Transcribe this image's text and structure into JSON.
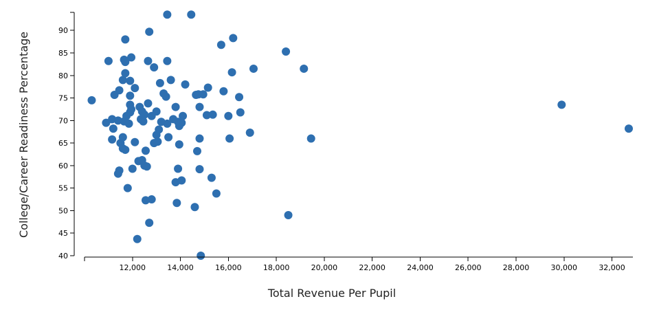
{
  "chart_data": {
    "type": "scatter",
    "xlabel": "Total Revenue Per Pupil",
    "ylabel": "College/Career Readiness Percentage",
    "xlim": [
      10000,
      32700
    ],
    "ylim": [
      40,
      94
    ],
    "x_ticks": [
      12000,
      14000,
      16000,
      18000,
      20000,
      22000,
      24000,
      26000,
      28000,
      30000,
      32000
    ],
    "x_tick_labels": [
      "12,000",
      "14,000",
      "16,000",
      "18,000",
      "20,000",
      "22,000",
      "24,000",
      "26,000",
      "28,000",
      "30,000",
      "32,000"
    ],
    "y_ticks": [
      40,
      45,
      50,
      55,
      60,
      65,
      70,
      75,
      80,
      85,
      90
    ],
    "y_tick_labels": [
      "40",
      "45",
      "50",
      "55",
      "60",
      "65",
      "70",
      "75",
      "80",
      "85",
      "90"
    ],
    "grid": false,
    "legend": "none",
    "marker_color": "#2e6fb0",
    "points": [
      [
        10300,
        74.5
      ],
      [
        10900,
        69.5
      ],
      [
        11000,
        83.2
      ],
      [
        11150,
        65.8
      ],
      [
        11150,
        70.3
      ],
      [
        11200,
        68.2
      ],
      [
        11250,
        75.7
      ],
      [
        11400,
        70.0
      ],
      [
        11450,
        76.7
      ],
      [
        11400,
        58.2
      ],
      [
        11450,
        58.9
      ],
      [
        11500,
        65.0
      ],
      [
        11600,
        63.8
      ],
      [
        11600,
        66.3
      ],
      [
        11600,
        79.0
      ],
      [
        11650,
        83.5
      ],
      [
        11650,
        69.8
      ],
      [
        11700,
        80.5
      ],
      [
        11700,
        83.0
      ],
      [
        11700,
        63.5
      ],
      [
        11700,
        88.0
      ],
      [
        11750,
        71.0
      ],
      [
        11800,
        55.0
      ],
      [
        11850,
        69.3
      ],
      [
        11900,
        78.8
      ],
      [
        11900,
        75.5
      ],
      [
        11900,
        73.5
      ],
      [
        11900,
        71.8
      ],
      [
        11950,
        84.0
      ],
      [
        11950,
        72.5
      ],
      [
        12000,
        59.3
      ],
      [
        12100,
        77.2
      ],
      [
        12100,
        65.2
      ],
      [
        12200,
        43.7
      ],
      [
        12250,
        61.0
      ],
      [
        12300,
        73.0
      ],
      [
        12350,
        70.3
      ],
      [
        12400,
        72.0
      ],
      [
        12400,
        61.2
      ],
      [
        12450,
        69.8
      ],
      [
        12500,
        71.3
      ],
      [
        12500,
        60.0
      ],
      [
        12550,
        63.3
      ],
      [
        12550,
        52.3
      ],
      [
        12600,
        59.8
      ],
      [
        12650,
        73.8
      ],
      [
        12650,
        83.2
      ],
      [
        12700,
        89.7
      ],
      [
        12700,
        47.3
      ],
      [
        12800,
        52.5
      ],
      [
        12800,
        71.0
      ],
      [
        12900,
        81.8
      ],
      [
        12900,
        65.0
      ],
      [
        13000,
        72.0
      ],
      [
        13000,
        66.8
      ],
      [
        13050,
        65.3
      ],
      [
        13100,
        68.0
      ],
      [
        13150,
        78.3
      ],
      [
        13200,
        69.7
      ],
      [
        13300,
        76.0
      ],
      [
        13400,
        75.3
      ],
      [
        13450,
        69.3
      ],
      [
        13450,
        83.2
      ],
      [
        13450,
        93.5
      ],
      [
        13500,
        66.3
      ],
      [
        13600,
        79.0
      ],
      [
        13700,
        70.3
      ],
      [
        13800,
        56.3
      ],
      [
        13800,
        73.0
      ],
      [
        13850,
        51.7
      ],
      [
        13900,
        59.3
      ],
      [
        13900,
        69.7
      ],
      [
        13950,
        64.7
      ],
      [
        13950,
        68.8
      ],
      [
        14050,
        56.7
      ],
      [
        14050,
        69.5
      ],
      [
        14100,
        71.0
      ],
      [
        14200,
        78.0
      ],
      [
        14450,
        93.5
      ],
      [
        14600,
        50.8
      ],
      [
        14650,
        75.7
      ],
      [
        14700,
        63.2
      ],
      [
        14750,
        75.8
      ],
      [
        14800,
        73.0
      ],
      [
        14800,
        66.0
      ],
      [
        14800,
        59.2
      ],
      [
        14850,
        40.0
      ],
      [
        14950,
        75.8
      ],
      [
        15100,
        71.2
      ],
      [
        15150,
        77.3
      ],
      [
        15300,
        57.3
      ],
      [
        15350,
        71.3
      ],
      [
        15500,
        53.8
      ],
      [
        15700,
        86.8
      ],
      [
        15800,
        76.5
      ],
      [
        16000,
        71.0
      ],
      [
        16050,
        66.0
      ],
      [
        16150,
        80.7
      ],
      [
        16200,
        88.3
      ],
      [
        16450,
        75.2
      ],
      [
        16500,
        71.8
      ],
      [
        16900,
        67.3
      ],
      [
        17050,
        81.5
      ],
      [
        18400,
        85.3
      ],
      [
        18500,
        49.0
      ],
      [
        19150,
        81.5
      ],
      [
        19450,
        66.0
      ],
      [
        29900,
        73.5
      ],
      [
        32700,
        68.2
      ]
    ]
  }
}
